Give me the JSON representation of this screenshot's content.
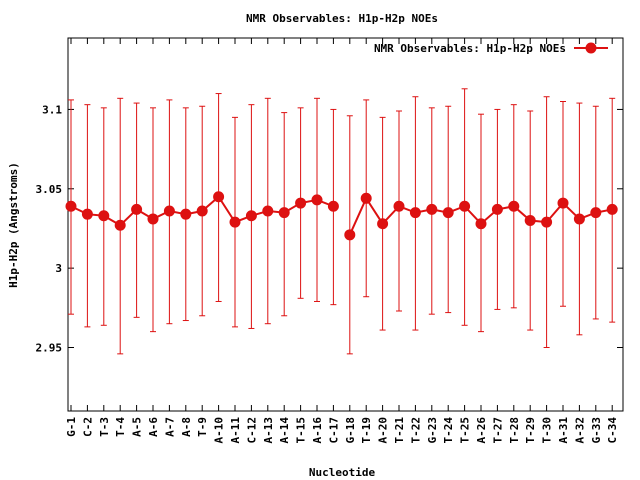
{
  "chart_data": {
    "type": "line",
    "title": "NMR Observables: H1p-H2p NOEs",
    "xlabel": "Nucleotide",
    "ylabel": "H1p-H2p (Angstroms)",
    "ylim": [
      2.91,
      3.145
    ],
    "yticks": [
      2.95,
      3,
      3.05,
      3.1
    ],
    "ytick_labels": [
      "2.95",
      "3",
      "3.05",
      "3.1"
    ],
    "grid": false,
    "legend_position": "top-right",
    "series": [
      {
        "name": "NMR Observables: H1p-H2p NOEs",
        "color": "#dd1111",
        "segments": [
          {
            "categories": [
              "G-1",
              "C-2",
              "T-3",
              "T-4",
              "A-5",
              "A-6",
              "A-7",
              "A-8",
              "T-9",
              "A-10",
              "A-11",
              "C-12",
              "A-13",
              "A-14",
              "T-15",
              "A-16",
              "C-17"
            ],
            "values": [
              3.039,
              3.034,
              3.033,
              3.027,
              3.037,
              3.031,
              3.036,
              3.034,
              3.036,
              3.045,
              3.029,
              3.033,
              3.036,
              3.035,
              3.041,
              3.043,
              3.039
            ],
            "err_low": [
              2.971,
              2.963,
              2.964,
              2.946,
              2.969,
              2.96,
              2.965,
              2.967,
              2.97,
              2.979,
              2.963,
              2.962,
              2.965,
              2.97,
              2.981,
              2.979,
              2.977
            ],
            "err_high": [
              3.106,
              3.103,
              3.101,
              3.107,
              3.104,
              3.101,
              3.106,
              3.101,
              3.102,
              3.11,
              3.095,
              3.103,
              3.107,
              3.098,
              3.101,
              3.107,
              3.1
            ]
          },
          {
            "categories": [
              "G-18",
              "T-19",
              "A-20",
              "T-21",
              "T-22",
              "G-23",
              "T-24",
              "T-25",
              "A-26",
              "T-27",
              "T-28",
              "T-29",
              "T-30",
              "A-31",
              "A-32",
              "G-33",
              "C-34"
            ],
            "values": [
              3.021,
              3.044,
              3.028,
              3.039,
              3.035,
              3.037,
              3.035,
              3.039,
              3.028,
              3.037,
              3.039,
              3.03,
              3.029,
              3.041,
              3.031,
              3.035,
              3.037
            ],
            "err_low": [
              2.946,
              2.982,
              2.961,
              2.973,
              2.961,
              2.971,
              2.972,
              2.964,
              2.96,
              2.974,
              2.975,
              2.961,
              2.95,
              2.976,
              2.958,
              2.968,
              2.966
            ],
            "err_high": [
              3.096,
              3.106,
              3.095,
              3.099,
              3.108,
              3.101,
              3.102,
              3.113,
              3.097,
              3.1,
              3.103,
              3.099,
              3.108,
              3.105,
              3.104,
              3.102,
              3.107
            ]
          }
        ]
      }
    ]
  }
}
